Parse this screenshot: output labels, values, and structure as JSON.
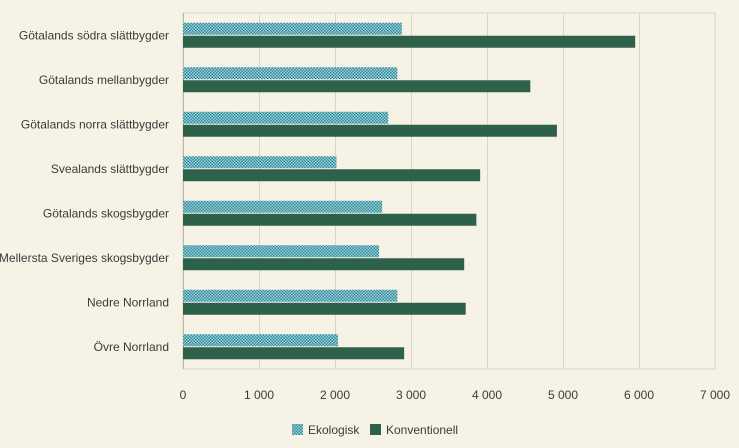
{
  "chart_data": {
    "type": "bar",
    "orientation": "horizontal",
    "categories": [
      "Götalands södra slättbygder",
      "Götalands mellanbygder",
      "Götalands norra slättbygder",
      "Svealands slättbygder",
      "Götalands skogsbygder",
      "Mellersta Sveriges skogsbygder",
      "Nedre Norrland",
      "Övre Norrland"
    ],
    "series": [
      {
        "name": "Ekologisk",
        "color": "#2f8a9c",
        "pattern": "checker",
        "values": [
          2880,
          2820,
          2700,
          2020,
          2620,
          2580,
          2820,
          2040
        ]
      },
      {
        "name": "Konventionell",
        "color": "#2e614a",
        "pattern": "solid",
        "values": [
          5950,
          4570,
          4920,
          3910,
          3860,
          3700,
          3720,
          2910
        ]
      }
    ],
    "xlim": [
      0,
      7000
    ],
    "xticks": [
      0,
      1000,
      2000,
      3000,
      4000,
      5000,
      6000,
      7000
    ],
    "xtick_labels": [
      "0",
      "1 000",
      "2 000",
      "3 000",
      "4 000",
      "5 000",
      "6 000",
      "7 000"
    ],
    "grid": "vertical",
    "legend_position": "bottom-center",
    "title": "",
    "xlabel": "",
    "ylabel": ""
  }
}
